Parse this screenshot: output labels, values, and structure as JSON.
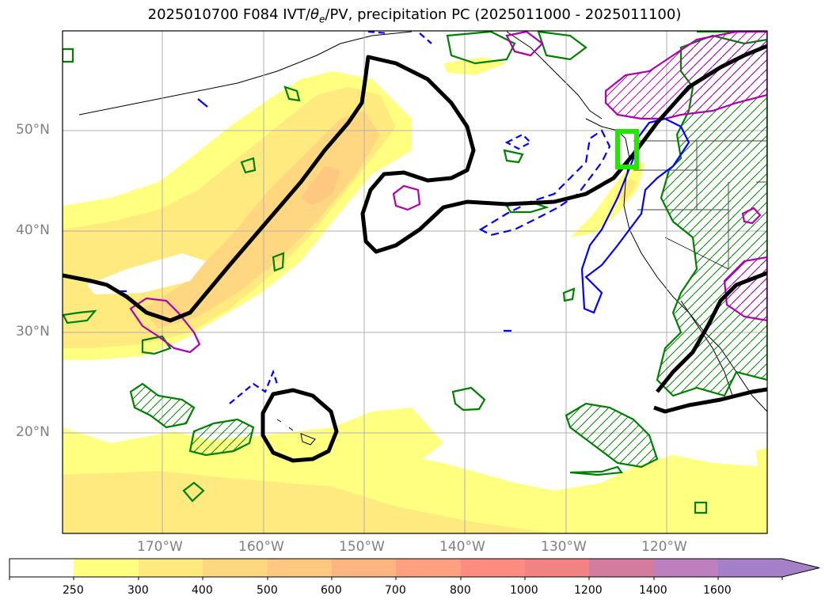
{
  "title": {
    "prefix": "2025010700 F084 IVT/",
    "theta": "θ",
    "theta_sub": "e",
    "suffix": "/PV, precipitation PC (2025011000 - 2025011100)"
  },
  "lat_labels": [
    "50°N",
    "40°N",
    "30°N",
    "20°N"
  ],
  "lon_labels": [
    "170°W",
    "160°W",
    "150°W",
    "140°W",
    "130°W",
    "120°W"
  ],
  "colorbar": {
    "labels": [
      "250",
      "300",
      "400",
      "500",
      "600",
      "700",
      "800",
      "1000",
      "1200",
      "1400",
      "1600"
    ],
    "colors": [
      "#ffffff",
      "#ffff80",
      "#ffea80",
      "#ffd780",
      "#ffc880",
      "#ffb580",
      "#ffa080",
      "#ff8c80",
      "#f28284",
      "#d47c9e",
      "#bd7fbd",
      "#a57fc8"
    ],
    "extend": "max"
  },
  "colors": {
    "jet_contour": "#000000",
    "theta_e_dashed": "#0000ff",
    "precip_pc": "#008000",
    "pv": "#b000b0",
    "target_box": "#22e800"
  }
}
